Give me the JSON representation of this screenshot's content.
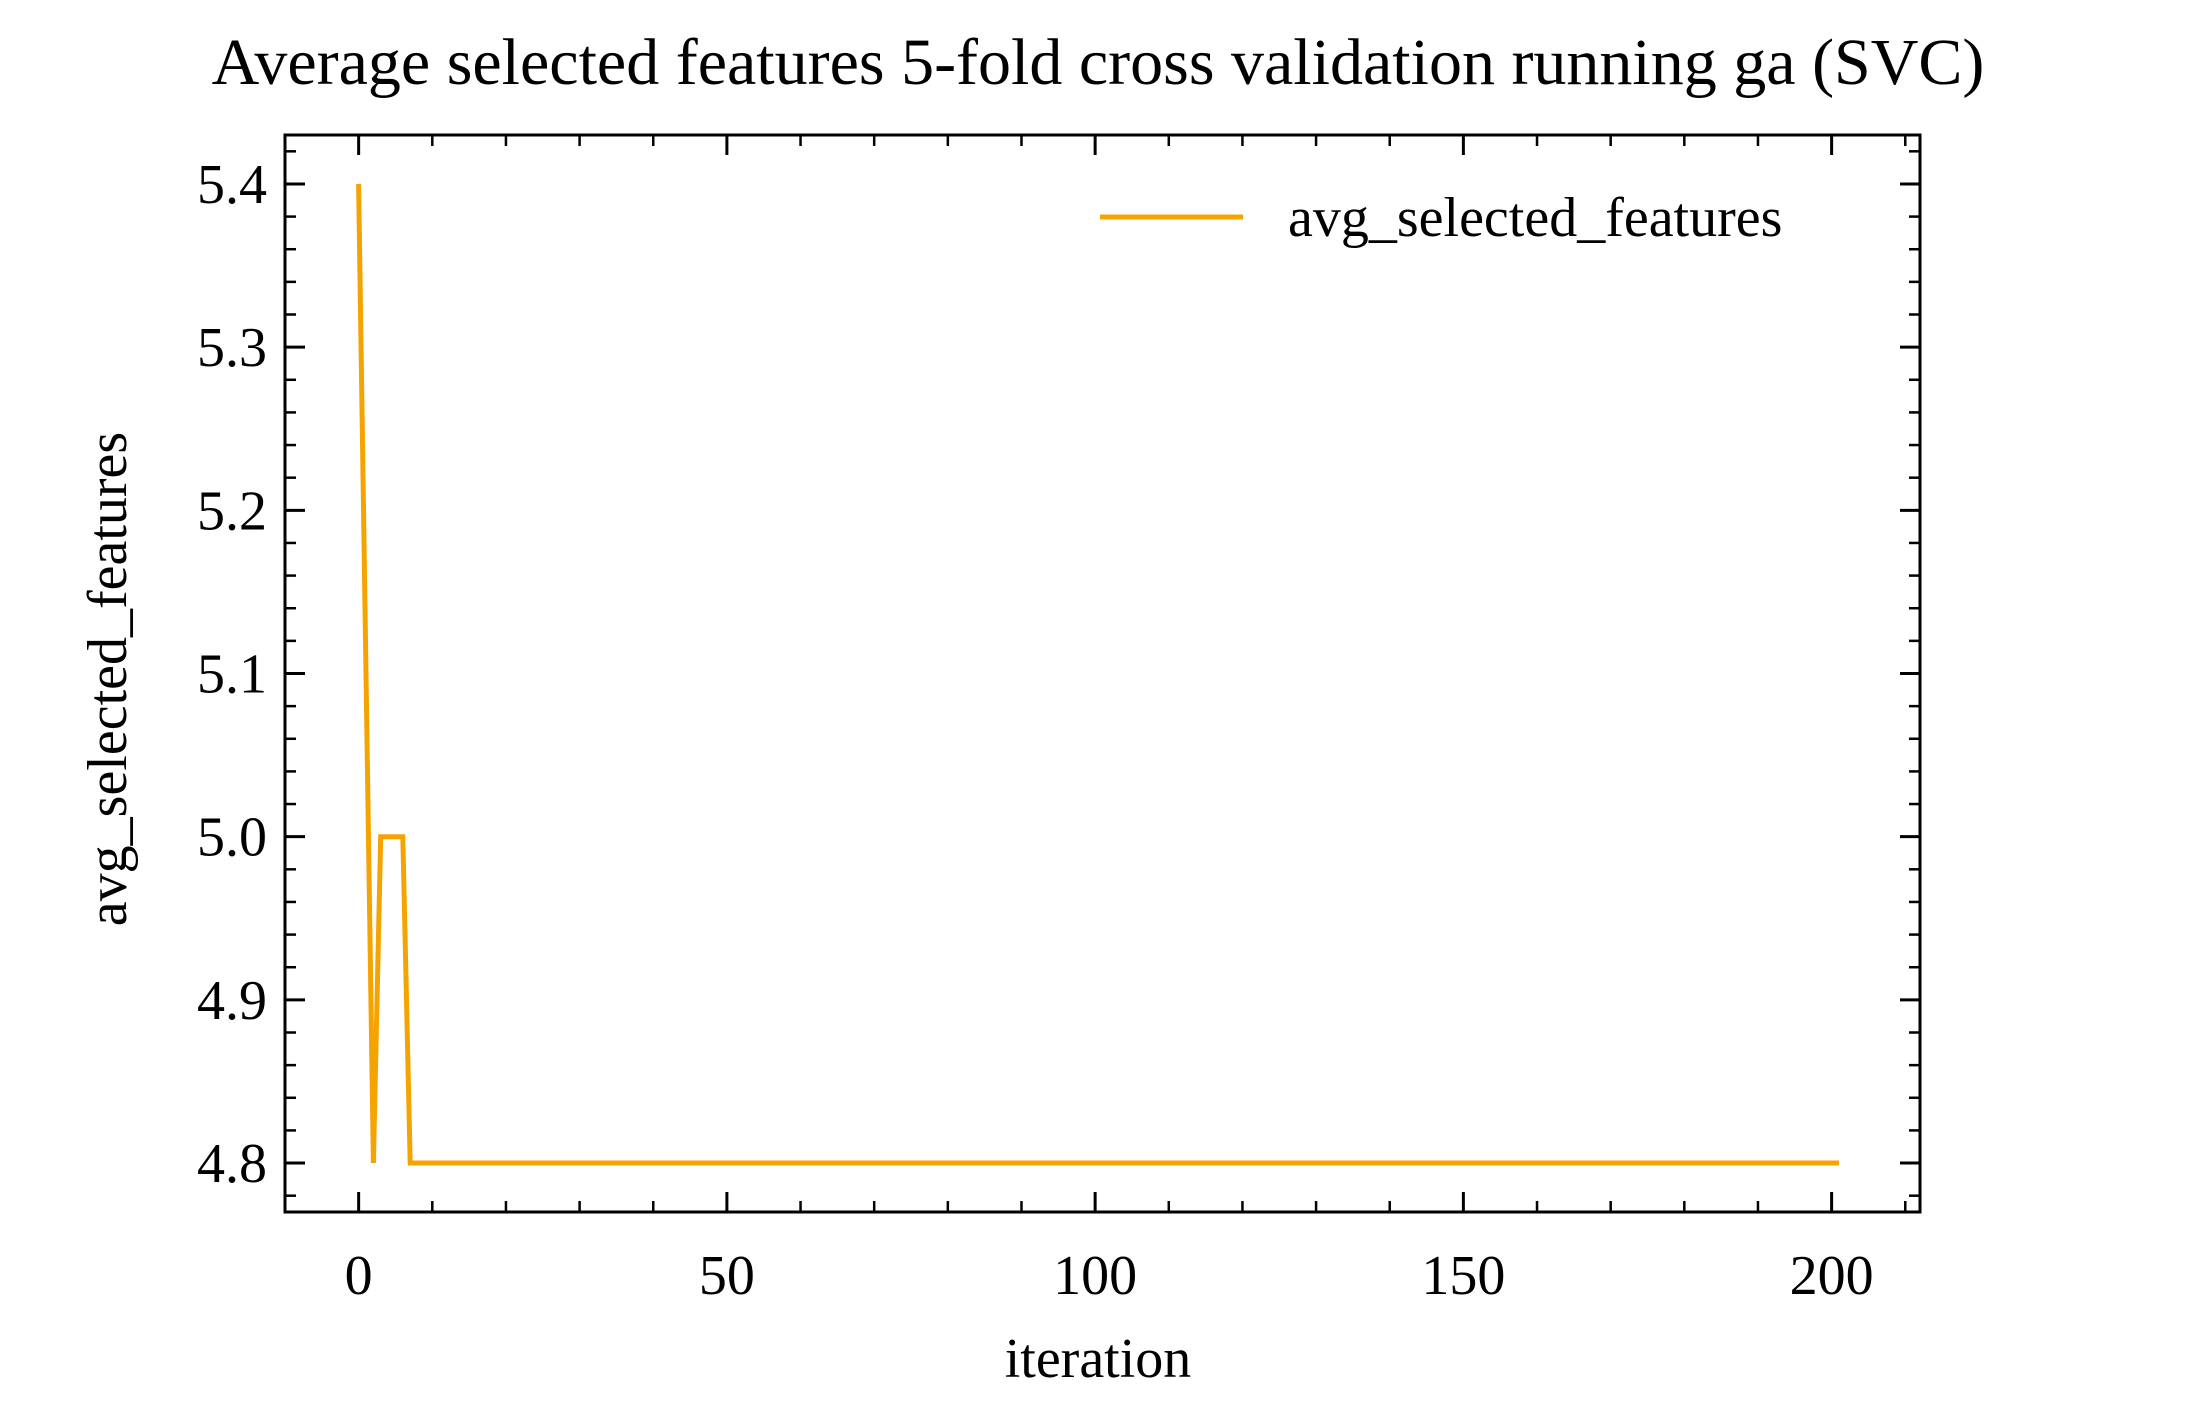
{
  "chart_data": {
    "type": "line",
    "title": "Average selected features 5-fold cross validation running ga (SVC)",
    "xlabel": "iteration",
    "ylabel": "avg_selected_features",
    "xlim": [
      -10,
      212
    ],
    "ylim": [
      4.77,
      5.43
    ],
    "x_ticks": [
      0,
      50,
      100,
      150,
      200
    ],
    "x_tick_labels": [
      "0",
      "50",
      "100",
      "150",
      "200"
    ],
    "y_ticks": [
      4.8,
      4.9,
      5.0,
      5.1,
      5.2,
      5.3,
      5.4
    ],
    "y_tick_labels": [
      "4.8",
      "4.9",
      "5.0",
      "5.1",
      "5.2",
      "5.3",
      "5.4"
    ],
    "x_minor_step": 10,
    "y_minor_step": 0.02,
    "grid": false,
    "legend_position": "top-right",
    "series": [
      {
        "name": "avg_selected_features",
        "color": "#f5a300",
        "points": [
          [
            0,
            5.4
          ],
          [
            2,
            4.8
          ],
          [
            3,
            5.0
          ],
          [
            6,
            5.0
          ],
          [
            7,
            4.8
          ],
          [
            201,
            4.8
          ]
        ]
      }
    ]
  }
}
